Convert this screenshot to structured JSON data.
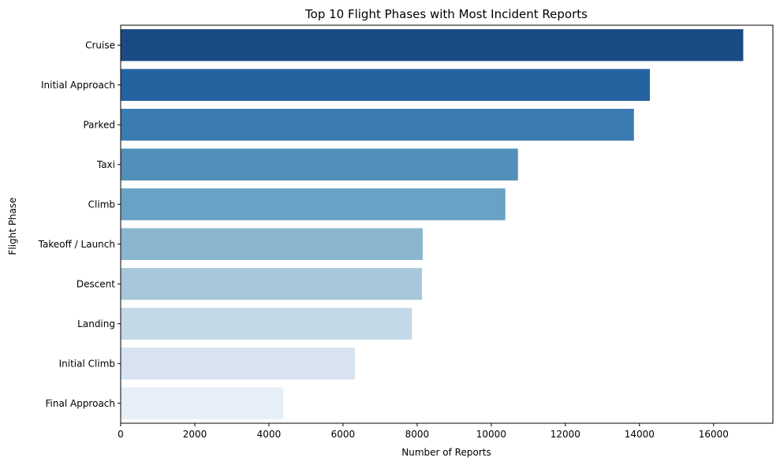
{
  "chart_data": {
    "type": "bar",
    "orientation": "horizontal",
    "title": "Top 10 Flight Phases with Most Incident Reports",
    "xlabel": "Number of Reports",
    "ylabel": "Flight Phase",
    "xlim": [
      0,
      17600
    ],
    "xticks": [
      0,
      2000,
      4000,
      6000,
      8000,
      10000,
      12000,
      14000,
      16000
    ],
    "grid": false,
    "legend": "none",
    "categories": [
      "Cruise",
      "Initial Approach",
      "Parked",
      "Taxi",
      "Climb",
      "Takeoff / Launch",
      "Descent",
      "Landing",
      "Initial Climb",
      "Final Approach"
    ],
    "values": [
      16800,
      14280,
      13850,
      10720,
      10380,
      8150,
      8130,
      7860,
      6320,
      4390
    ],
    "colors": [
      "#1a4a83",
      "#2563a0",
      "#3a7bb2",
      "#528fb9",
      "#6aa2c5",
      "#8ab6cf",
      "#a7c8da",
      "#c4d9e7",
      "#d7e4f0",
      "#e6eff8"
    ]
  }
}
